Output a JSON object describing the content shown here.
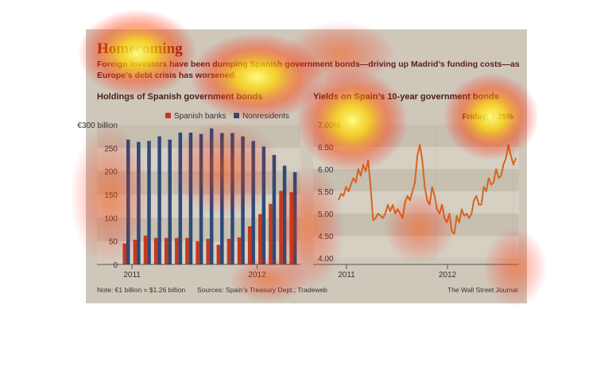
{
  "headline": "Homecoming",
  "subtitle": "Foreign investors have been dumping Spanish government bonds—driving up Madrid’s funding costs—as Europe’s debt crisis has worsened.",
  "note": "Note: €1 billion = $1.26 billion",
  "sources": "Sources: Spain’s Treasury Dept.; Tradeweb",
  "credit": "The Wall Street Journal",
  "colors": {
    "spanish_banks": "#c23a1c",
    "nonresidents": "#2d4a78",
    "yield_line": "#d8641f",
    "bg": "#cfc8ba"
  },
  "chart_data": [
    {
      "type": "bar",
      "title": "Holdings of Spanish government bonds",
      "ylabel": "",
      "y_tick_labels": [
        "0",
        "50",
        "100",
        "150",
        "200",
        "250",
        "€300 billion"
      ],
      "ylim": [
        0,
        300
      ],
      "x_tick_labels": [
        "2011",
        "2012"
      ],
      "legend_position": "top-right",
      "series": [
        {
          "name": "Spanish banks",
          "color": "#c23a1c",
          "values": [
            45,
            53,
            62,
            57,
            57,
            57,
            57,
            50,
            55,
            42,
            55,
            58,
            82,
            108,
            130,
            158,
            155
          ]
        },
        {
          "name": "Nonresidents",
          "color": "#2d4a78",
          "values": [
            268,
            263,
            265,
            275,
            268,
            283,
            283,
            280,
            292,
            282,
            282,
            275,
            265,
            253,
            235,
            212,
            198
          ]
        }
      ]
    },
    {
      "type": "line",
      "title": "Yields on Spain’s 10-year government bonds",
      "annotation": "Friday: 6.25%",
      "y_tick_labels": [
        "4.00",
        "4.50",
        "5.00",
        "5.50",
        "6.00",
        "6.50",
        "7.00%"
      ],
      "ylim": [
        4.0,
        7.0
      ],
      "x_tick_labels": [
        "2011",
        "2012"
      ],
      "series": [
        {
          "name": "",
          "color": "#d8641f",
          "values": [
            5.3,
            5.45,
            5.4,
            5.6,
            5.5,
            5.65,
            5.8,
            5.7,
            6.0,
            5.85,
            6.1,
            5.95,
            6.2,
            5.6,
            4.85,
            4.9,
            5.0,
            4.95,
            4.9,
            5.0,
            5.2,
            5.05,
            5.2,
            5.0,
            5.1,
            5.0,
            4.9,
            5.25,
            5.4,
            5.3,
            5.5,
            5.7,
            6.3,
            6.55,
            6.2,
            5.6,
            5.3,
            5.2,
            5.6,
            5.4,
            5.1,
            5.0,
            5.2,
            4.9,
            4.8,
            5.0,
            4.6,
            4.55,
            4.95,
            4.8,
            5.1,
            4.95,
            5.0,
            4.9,
            5.0,
            5.3,
            5.4,
            5.2,
            5.2,
            5.6,
            5.5,
            5.8,
            5.65,
            5.7,
            6.0,
            5.8,
            5.85,
            6.1,
            6.25,
            6.55,
            6.3,
            6.1,
            6.25
          ]
        }
      ]
    }
  ]
}
